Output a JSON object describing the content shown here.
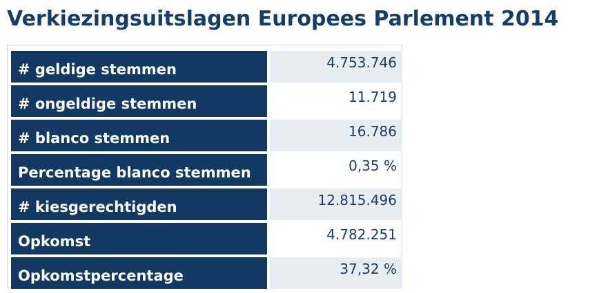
{
  "title": "Verkiezingsuitslagen Europees Parlement 2014",
  "rows": [
    {
      "label": "# geldige stemmen",
      "value": "4.753.746"
    },
    {
      "label": "# ongeldige stemmen",
      "value": "11.719"
    },
    {
      "label": "# blanco stemmen",
      "value": "16.786"
    },
    {
      "label": "Percentage blanco stemmen",
      "value": "0,35 %"
    },
    {
      "label": "# kiesgerechtigden",
      "value": "12.815.496"
    },
    {
      "label": "Opkomst",
      "value": "4.782.251"
    },
    {
      "label": "Opkomstpercentage",
      "value": "37,32 %"
    }
  ],
  "colors": {
    "title": "#143d6b",
    "label_background": "#113962",
    "label_text": "#ffffff",
    "value_text": "#1b3c63",
    "value_shaded_background": "#e8edf2"
  }
}
